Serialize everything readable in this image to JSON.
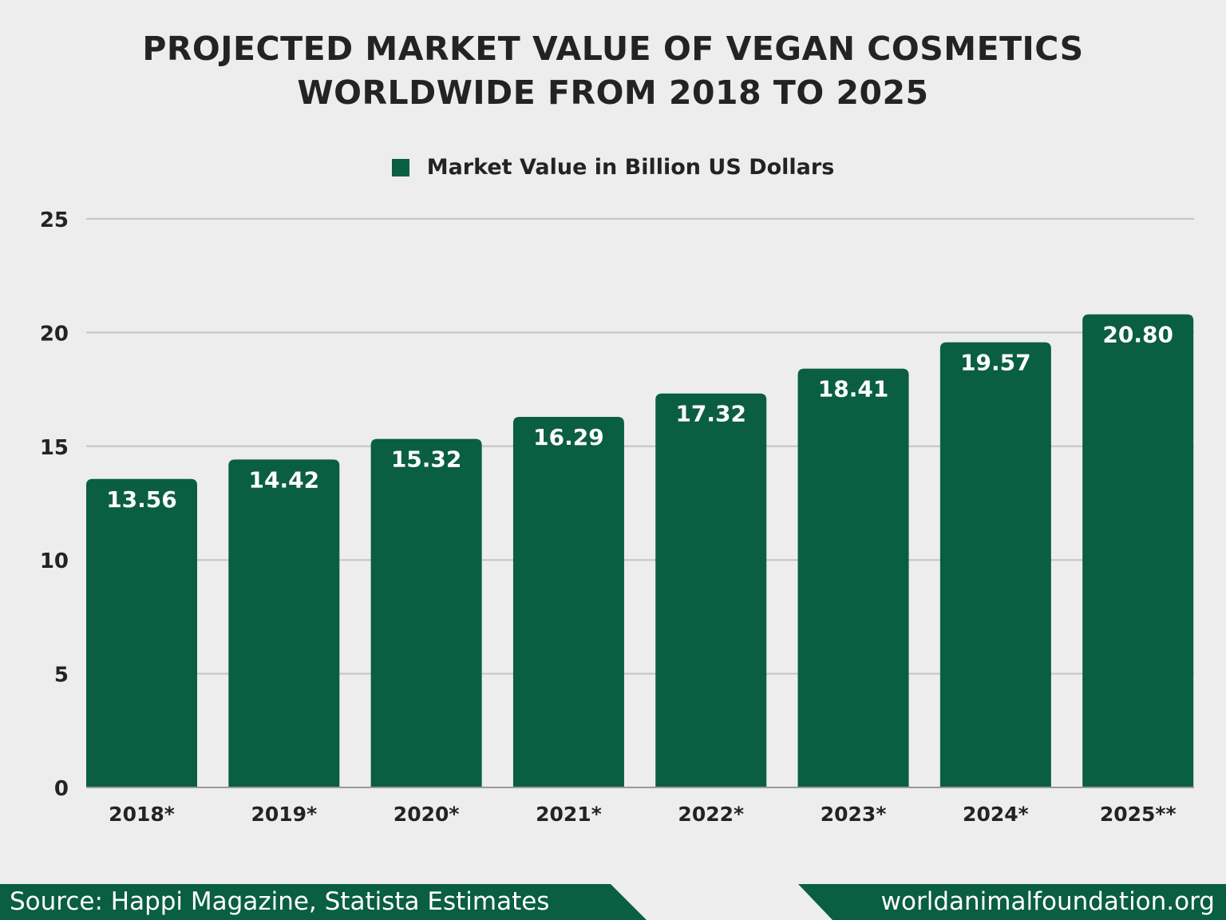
{
  "chart_data": {
    "type": "bar",
    "title": "PROJECTED MARKET VALUE OF VEGAN COSMETICS WORLDWIDE FROM 2018 TO 2025",
    "title_lines": [
      "PROJECTED MARKET VALUE OF VEGAN COSMETICS",
      "WORLDWIDE FROM 2018 TO 2025"
    ],
    "categories": [
      "2018*",
      "2019*",
      "2020*",
      "2021*",
      "2022*",
      "2023*",
      "2024*",
      "2025**"
    ],
    "series": [
      {
        "name": "Market Value in Billion US Dollars",
        "values": [
          13.56,
          14.42,
          15.32,
          16.29,
          17.32,
          18.41,
          19.57,
          20.8
        ],
        "labels": [
          "13.56",
          "14.42",
          "15.32",
          "16.29",
          "17.32",
          "18.41",
          "19.57",
          "20.80"
        ],
        "color": "#0a5e42"
      }
    ],
    "xlabel": "",
    "ylabel": "",
    "ylim": [
      0,
      25
    ],
    "yticks": [
      0,
      5,
      10,
      15,
      20,
      25
    ],
    "grid": true,
    "legend_position": "top-center"
  },
  "footer": {
    "source": "Source: Happi Magazine, Statista Estimates",
    "site": "worldanimalfoundation.org"
  }
}
